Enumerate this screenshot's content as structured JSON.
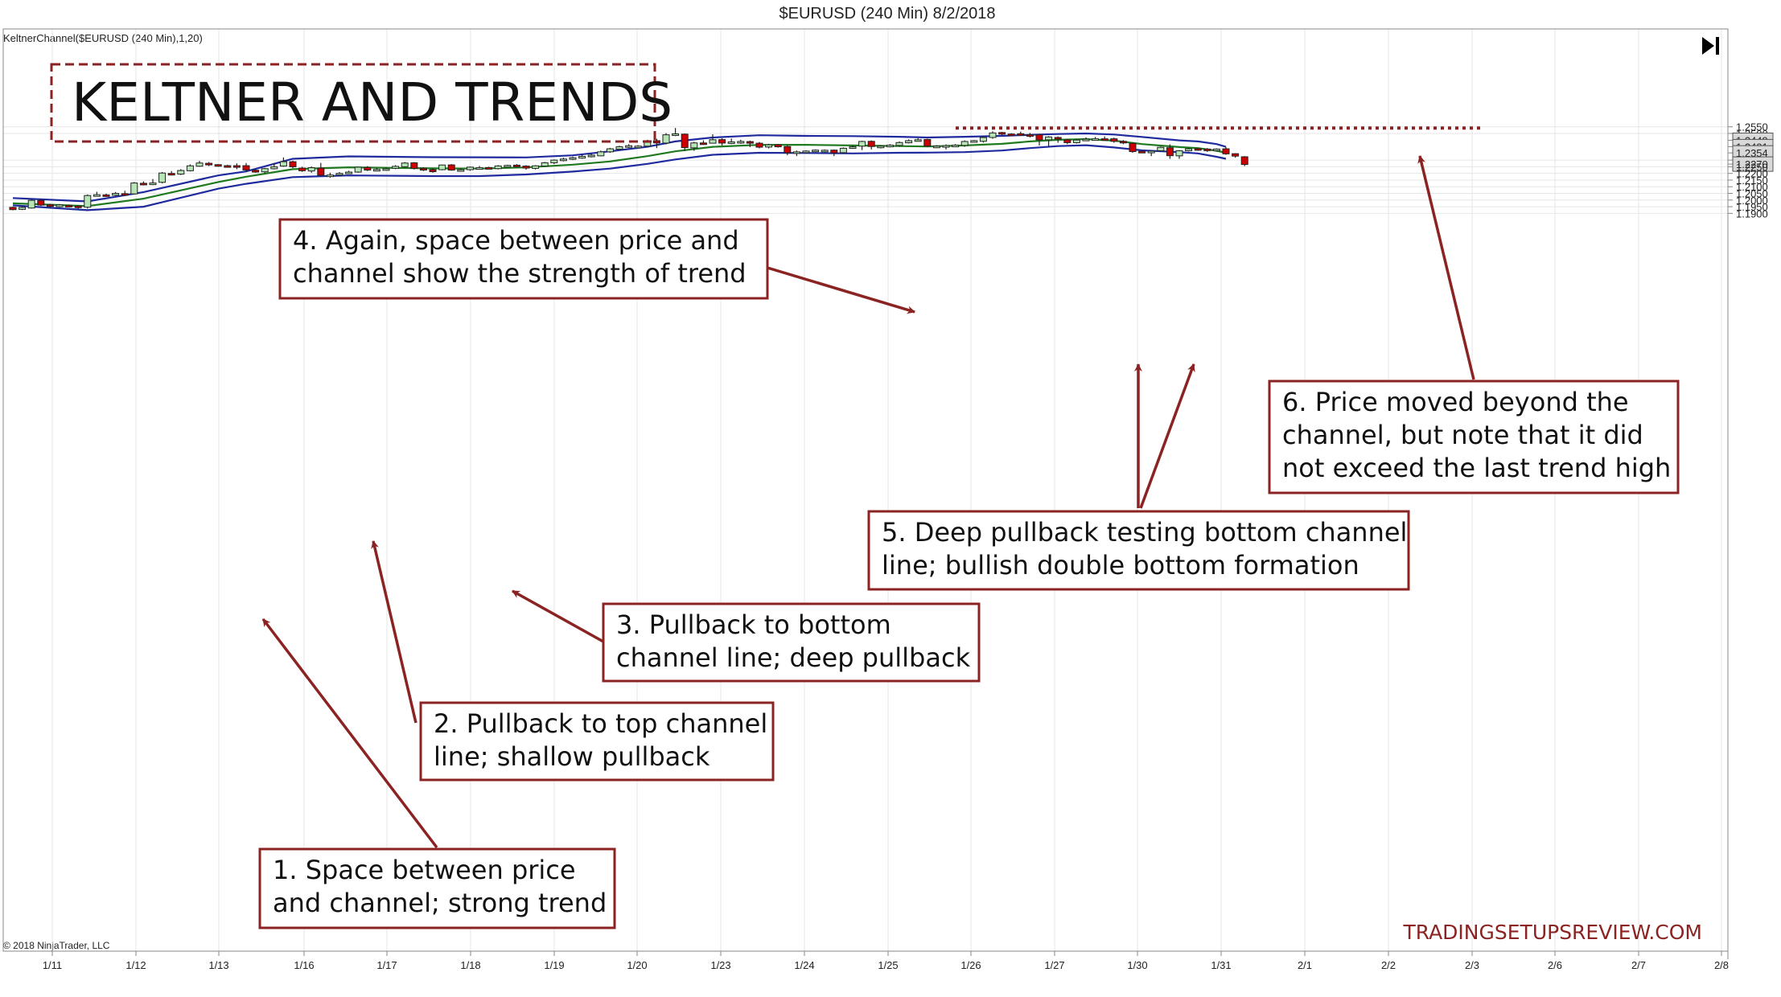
{
  "header": {
    "title": "$EURUSD (240 Min)  8/2/2018"
  },
  "indicator_label": "KeltnerChannel($EURUSD (240 Min),1,20)",
  "copyright": "© 2018 NinjaTrader, LLC",
  "headline": "KELTNER AND TRENDS",
  "watermark": "TRADINGSETUPSREVIEW.COM",
  "colors": {
    "bull_fill": "#b6e6b6",
    "bear_fill": "#cc0000",
    "upper_band": "#1f2a9e",
    "middle_band": "#1f7a1f",
    "lower_band": "#1f2a9e",
    "annotation": "#8b2323",
    "background": "#ffffff",
    "grid": "#e6e6e6"
  },
  "annotations": [
    {
      "id": "a1",
      "lines": [
        "1. Space between price",
        "and channel; strong trend"
      ]
    },
    {
      "id": "a2",
      "lines": [
        "2. Pullback to top channel",
        "line; shallow pullback"
      ]
    },
    {
      "id": "a3",
      "lines": [
        "3. Pullback to bottom",
        "channel line; deep pullback"
      ]
    },
    {
      "id": "a4",
      "lines": [
        "4. Again, space between price and",
        "channel show the strength of trend"
      ]
    },
    {
      "id": "a5",
      "lines": [
        "5. Deep pullback testing bottom channel",
        "line; bullish double bottom formation"
      ]
    },
    {
      "id": "a6",
      "lines": [
        "6. Price moved beyond the",
        "channel, but note that it did",
        "not exceed the last trend high"
      ]
    }
  ],
  "chart_data": {
    "type": "candlestick",
    "title": "$EURUSD (240 Min)  8/2/2018",
    "indicator": "KeltnerChannel($EURUSD (240 Min),1,20)",
    "x_tick_labels": [
      "1/11",
      "1/12",
      "1/13",
      "1/16",
      "1/17",
      "1/18",
      "1/19",
      "1/20",
      "1/23",
      "1/24",
      "1/25",
      "1/26",
      "1/27",
      "1/30",
      "1/31",
      "2/1",
      "2/2",
      "2/3",
      "2/6",
      "2/7",
      "2/8"
    ],
    "y_tick_labels": [
      "1.2550",
      "1.2500",
      "1.2449",
      "1.2401",
      "1.2354",
      "1.2300",
      "1.2270",
      "1.2250",
      "1.2200",
      "1.2150",
      "1.2100",
      "1.2050",
      "1.2000",
      "1.1950",
      "1.1900"
    ],
    "ylim": [
      1.1895,
      1.2585
    ],
    "highlighted_levels": [
      "1.2449",
      "1.2401",
      "1.2354",
      "1.2270"
    ],
    "resistance_line": 1.2541,
    "candles": [
      [
        1.1945,
        1.1928,
        1.195,
        1.1923
      ],
      [
        1.193,
        1.1945,
        1.1952,
        1.1925
      ],
      [
        1.194,
        1.1998,
        1.2004,
        1.1936
      ],
      [
        1.1997,
        1.1962,
        1.2008,
        1.1955
      ],
      [
        1.1965,
        1.1952,
        1.1972,
        1.1944
      ],
      [
        1.195,
        1.1964,
        1.197,
        1.1946
      ],
      [
        1.196,
        1.1953,
        1.1966,
        1.1945
      ],
      [
        1.1955,
        1.1951,
        1.1962,
        1.1935
      ],
      [
        1.1946,
        1.2034,
        1.2042,
        1.1936
      ],
      [
        1.2033,
        1.204,
        1.2062,
        1.203
      ],
      [
        1.2039,
        1.2033,
        1.2048,
        1.2025
      ],
      [
        1.2036,
        1.205,
        1.206,
        1.2032
      ],
      [
        1.2048,
        1.2046,
        1.207,
        1.2042
      ],
      [
        1.2046,
        1.2128,
        1.2135,
        1.2042
      ],
      [
        1.2126,
        1.2122,
        1.214,
        1.211
      ],
      [
        1.2122,
        1.2128,
        1.2158,
        1.2112
      ],
      [
        1.2133,
        1.2203,
        1.221,
        1.2125
      ],
      [
        1.22,
        1.2193,
        1.2218,
        1.2185
      ],
      [
        1.2195,
        1.2222,
        1.2232,
        1.2188
      ],
      [
        1.222,
        1.2257,
        1.2268,
        1.2215
      ],
      [
        1.2254,
        1.2278,
        1.2294,
        1.225
      ],
      [
        1.2276,
        1.2265,
        1.2285,
        1.2255
      ],
      [
        1.2266,
        1.2258,
        1.227,
        1.225
      ],
      [
        1.2258,
        1.2255,
        1.2265,
        1.2245
      ],
      [
        1.2258,
        1.2255,
        1.2275,
        1.2232
      ],
      [
        1.2258,
        1.2226,
        1.2278,
        1.2212
      ],
      [
        1.2224,
        1.221,
        1.2232,
        1.2205
      ],
      [
        1.2212,
        1.2236,
        1.2242,
        1.22
      ],
      [
        1.2235,
        1.225,
        1.2278,
        1.223
      ],
      [
        1.2255,
        1.2288,
        1.232,
        1.225
      ],
      [
        1.2288,
        1.225,
        1.2296,
        1.224
      ],
      [
        1.224,
        1.222,
        1.225,
        1.2212
      ],
      [
        1.2218,
        1.2243,
        1.2252,
        1.2205
      ],
      [
        1.224,
        1.2186,
        1.2279,
        1.218
      ],
      [
        1.2185,
        1.2188,
        1.2205,
        1.2168
      ],
      [
        1.2188,
        1.22,
        1.221,
        1.2178
      ],
      [
        1.2203,
        1.221,
        1.222,
        1.2195
      ],
      [
        1.221,
        1.2247,
        1.2252,
        1.2205
      ],
      [
        1.2245,
        1.2225,
        1.2255,
        1.2218
      ],
      [
        1.2225,
        1.223,
        1.224,
        1.2218
      ],
      [
        1.2232,
        1.2235,
        1.2244,
        1.2225
      ],
      [
        1.2238,
        1.2253,
        1.2262,
        1.2232
      ],
      [
        1.225,
        1.2278,
        1.2285,
        1.2245
      ],
      [
        1.228,
        1.2237,
        1.2285,
        1.223
      ],
      [
        1.2238,
        1.2225,
        1.2245,
        1.2218
      ],
      [
        1.2228,
        1.2213,
        1.2238,
        1.2205
      ],
      [
        1.2228,
        1.2263,
        1.2266,
        1.2224
      ],
      [
        1.2264,
        1.2225,
        1.227,
        1.222
      ],
      [
        1.2226,
        1.2228,
        1.2238,
        1.2218
      ],
      [
        1.2228,
        1.2247,
        1.2252,
        1.222
      ],
      [
        1.2243,
        1.2243,
        1.2256,
        1.2232
      ],
      [
        1.2244,
        1.224,
        1.225,
        1.223
      ],
      [
        1.2236,
        1.2256,
        1.2262,
        1.223
      ],
      [
        1.2258,
        1.226,
        1.2265,
        1.225
      ],
      [
        1.2262,
        1.2256,
        1.227,
        1.2248
      ],
      [
        1.2255,
        1.224,
        1.2262,
        1.2228
      ],
      [
        1.2238,
        1.2257,
        1.2262,
        1.223
      ],
      [
        1.2255,
        1.228,
        1.2286,
        1.225
      ],
      [
        1.228,
        1.23,
        1.2305,
        1.227
      ],
      [
        1.2297,
        1.2308,
        1.2318,
        1.229
      ],
      [
        1.2306,
        1.2318,
        1.2326,
        1.23
      ],
      [
        1.2315,
        1.2328,
        1.2345,
        1.231
      ],
      [
        1.2325,
        1.2337,
        1.2352,
        1.232
      ],
      [
        1.2332,
        1.2362,
        1.2372,
        1.2328
      ],
      [
        1.2362,
        1.2385,
        1.2392,
        1.2355
      ],
      [
        1.2382,
        1.24,
        1.2408,
        1.2376
      ],
      [
        1.2398,
        1.2408,
        1.242,
        1.239
      ],
      [
        1.2404,
        1.2405,
        1.2412,
        1.2396
      ],
      [
        1.2405,
        1.2446,
        1.2452,
        1.24
      ],
      [
        1.2446,
        1.2429,
        1.246,
        1.239
      ],
      [
        1.2428,
        1.249,
        1.2503,
        1.2418
      ],
      [
        1.2495,
        1.2497,
        1.2541,
        1.248
      ],
      [
        1.2495,
        1.2394,
        1.25,
        1.2368
      ],
      [
        1.2392,
        1.2429,
        1.2437,
        1.237
      ],
      [
        1.2429,
        1.2427,
        1.2448,
        1.2415
      ],
      [
        1.2427,
        1.2453,
        1.2494,
        1.2425
      ],
      [
        1.2454,
        1.2428,
        1.2464,
        1.241
      ],
      [
        1.2428,
        1.2437,
        1.2462,
        1.242
      ],
      [
        1.2437,
        1.244,
        1.2453,
        1.2422
      ],
      [
        1.2439,
        1.2427,
        1.2446,
        1.2398
      ],
      [
        1.2427,
        1.2397,
        1.2436,
        1.2388
      ],
      [
        1.2398,
        1.2415,
        1.2422,
        1.2388
      ],
      [
        1.2416,
        1.24,
        1.242,
        1.2394
      ],
      [
        1.2402,
        1.2355,
        1.241,
        1.2337
      ],
      [
        1.2355,
        1.2362,
        1.2372,
        1.233
      ],
      [
        1.236,
        1.2368,
        1.2374,
        1.235
      ],
      [
        1.2367,
        1.2375,
        1.238,
        1.236
      ],
      [
        1.2373,
        1.2374,
        1.238,
        1.2368
      ],
      [
        1.2375,
        1.2354,
        1.238,
        1.233
      ],
      [
        1.2356,
        1.2389,
        1.2395,
        1.235
      ],
      [
        1.2392,
        1.24,
        1.241,
        1.2384
      ],
      [
        1.2405,
        1.244,
        1.2445,
        1.2375
      ],
      [
        1.2441,
        1.2402,
        1.2448,
        1.238
      ],
      [
        1.24,
        1.2405,
        1.2412,
        1.2388
      ],
      [
        1.2402,
        1.2412,
        1.242,
        1.2396
      ],
      [
        1.241,
        1.2432,
        1.244,
        1.24
      ],
      [
        1.243,
        1.2446,
        1.2455,
        1.2425
      ],
      [
        1.2446,
        1.2453,
        1.2464,
        1.244
      ],
      [
        1.2455,
        1.2405,
        1.246,
        1.24
      ],
      [
        1.2405,
        1.2405,
        1.2412,
        1.239
      ],
      [
        1.2401,
        1.2409,
        1.2418,
        1.238
      ],
      [
        1.2406,
        1.2412,
        1.242,
        1.2404
      ],
      [
        1.241,
        1.244,
        1.2448,
        1.24
      ],
      [
        1.244,
        1.2446,
        1.2451,
        1.2436
      ],
      [
        1.2441,
        1.247,
        1.2478,
        1.2432
      ],
      [
        1.247,
        1.2504,
        1.2516,
        1.246
      ],
      [
        1.2507,
        1.2498,
        1.2512,
        1.2486
      ],
      [
        1.2496,
        1.2493,
        1.2502,
        1.248
      ],
      [
        1.2498,
        1.2491,
        1.2514,
        1.2484
      ],
      [
        1.2491,
        1.2482,
        1.2504,
        1.247
      ],
      [
        1.249,
        1.2452,
        1.2495,
        1.241
      ],
      [
        1.2452,
        1.2474,
        1.248,
        1.24
      ],
      [
        1.247,
        1.2459,
        1.2478,
        1.243
      ],
      [
        1.2452,
        1.2431,
        1.246,
        1.242
      ],
      [
        1.2431,
        1.2451,
        1.2458,
        1.2425
      ],
      [
        1.2451,
        1.2457,
        1.247,
        1.2448
      ],
      [
        1.2458,
        1.246,
        1.2474,
        1.2455
      ],
      [
        1.246,
        1.2458,
        1.2478,
        1.2455
      ],
      [
        1.246,
        1.2441,
        1.2468,
        1.243
      ],
      [
        1.2441,
        1.2431,
        1.245,
        1.242
      ],
      [
        1.2426,
        1.2364,
        1.2434,
        1.2355
      ],
      [
        1.2366,
        1.2358,
        1.2372,
        1.2352
      ],
      [
        1.2366,
        1.2367,
        1.2372,
        1.233
      ],
      [
        1.237,
        1.2396,
        1.2402,
        1.2368
      ],
      [
        1.2393,
        1.2333,
        1.2418,
        1.231
      ],
      [
        1.2332,
        1.237,
        1.2375,
        1.231
      ],
      [
        1.237,
        1.2385,
        1.2394,
        1.2365
      ],
      [
        1.2386,
        1.2379,
        1.239,
        1.237
      ],
      [
        1.2383,
        1.2372,
        1.239,
        1.2362
      ],
      [
        1.238,
        1.2383,
        1.2388,
        1.2366
      ],
      [
        1.2385,
        1.2347,
        1.2398,
        1.234
      ],
      [
        1.2348,
        1.233,
        1.2352,
        1.2318
      ],
      [
        1.2325,
        1.2267,
        1.233,
        1.2255
      ]
    ],
    "upper_band": [
      [
        0,
        1.2015
      ],
      [
        8,
        1.199
      ],
      [
        14,
        1.206
      ],
      [
        22,
        1.2185
      ],
      [
        25,
        1.2215
      ],
      [
        30,
        1.231
      ],
      [
        36,
        1.2328
      ],
      [
        45,
        1.2322
      ],
      [
        55,
        1.232
      ],
      [
        60,
        1.2336
      ],
      [
        64,
        1.2366
      ],
      [
        68,
        1.24
      ],
      [
        71,
        1.244
      ],
      [
        75,
        1.247
      ],
      [
        80,
        1.2487
      ],
      [
        85,
        1.2482
      ],
      [
        90,
        1.248
      ],
      [
        95,
        1.2475
      ],
      [
        98,
        1.247
      ],
      [
        102,
        1.2475
      ],
      [
        106,
        1.2482
      ],
      [
        109,
        1.249
      ],
      [
        112,
        1.2496
      ],
      [
        115,
        1.25
      ],
      [
        118,
        1.2492
      ],
      [
        121,
        1.2474
      ],
      [
        125,
        1.2448
      ],
      [
        127,
        1.244
      ],
      [
        129,
        1.242
      ],
      [
        130,
        1.24
      ]
    ],
    "middle_band": [
      [
        0,
        1.1975
      ],
      [
        8,
        1.1955
      ],
      [
        14,
        1.201
      ],
      [
        22,
        1.2135
      ],
      [
        25,
        1.2175
      ],
      [
        30,
        1.2232
      ],
      [
        36,
        1.2246
      ],
      [
        45,
        1.2238
      ],
      [
        50,
        1.2236
      ],
      [
        55,
        1.2245
      ],
      [
        60,
        1.2266
      ],
      [
        64,
        1.229
      ],
      [
        68,
        1.233
      ],
      [
        71,
        1.2366
      ],
      [
        75,
        1.24
      ],
      [
        80,
        1.2414
      ],
      [
        85,
        1.2415
      ],
      [
        90,
        1.241
      ],
      [
        95,
        1.2405
      ],
      [
        98,
        1.2402
      ],
      [
        102,
        1.241
      ],
      [
        106,
        1.2422
      ],
      [
        109,
        1.244
      ],
      [
        112,
        1.2452
      ],
      [
        115,
        1.2458
      ],
      [
        118,
        1.2446
      ],
      [
        121,
        1.242
      ],
      [
        125,
        1.2398
      ],
      [
        127,
        1.239
      ],
      [
        129,
        1.237
      ],
      [
        130,
        1.2355
      ]
    ],
    "lower_band": [
      [
        0,
        1.196
      ],
      [
        8,
        1.1924
      ],
      [
        14,
        1.195
      ],
      [
        22,
        1.2085
      ],
      [
        25,
        1.2122
      ],
      [
        30,
        1.2172
      ],
      [
        36,
        1.2185
      ],
      [
        45,
        1.218
      ],
      [
        50,
        1.218
      ],
      [
        55,
        1.2192
      ],
      [
        60,
        1.2214
      ],
      [
        64,
        1.2236
      ],
      [
        68,
        1.2272
      ],
      [
        71,
        1.2305
      ],
      [
        75,
        1.234
      ],
      [
        80,
        1.2355
      ],
      [
        85,
        1.2353
      ],
      [
        90,
        1.235
      ],
      [
        95,
        1.2355
      ],
      [
        98,
        1.2356
      ],
      [
        102,
        1.236
      ],
      [
        106,
        1.2372
      ],
      [
        109,
        1.239
      ],
      [
        112,
        1.2405
      ],
      [
        115,
        1.2412
      ],
      [
        118,
        1.2395
      ],
      [
        121,
        1.2373
      ],
      [
        125,
        1.236
      ],
      [
        127,
        1.235
      ],
      [
        129,
        1.2325
      ],
      [
        130,
        1.231
      ]
    ]
  }
}
